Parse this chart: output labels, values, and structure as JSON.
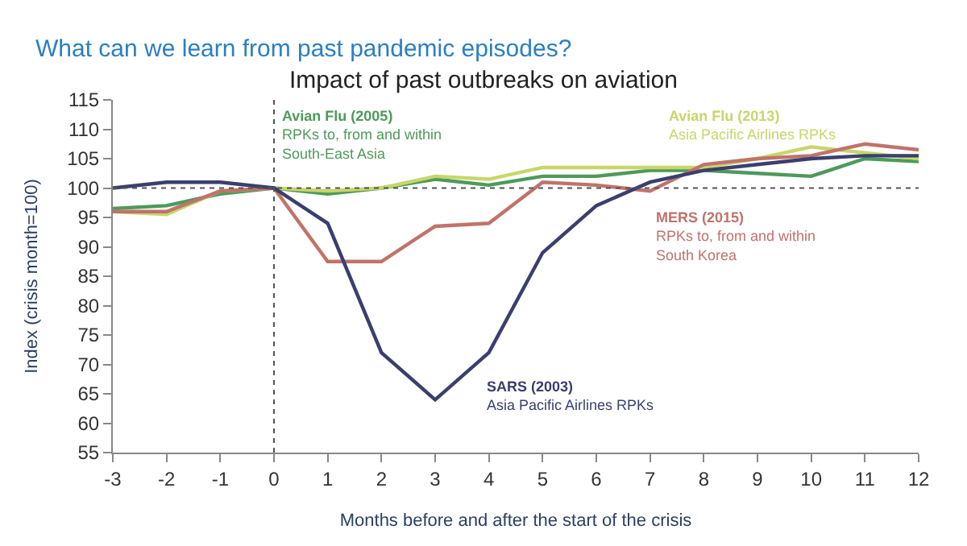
{
  "chart_data": {
    "type": "line",
    "title": "What can we learn from past pandemic episodes?",
    "subtitle": "Impact of past outbreaks on aviation",
    "xlabel": "Months before and after the start of the crisis",
    "ylabel": "Index (crisis month=100)",
    "x": [
      -3,
      -2,
      -1,
      0,
      1,
      2,
      3,
      4,
      5,
      6,
      7,
      8,
      9,
      10,
      11,
      12
    ],
    "series": [
      {
        "color": "#4e9a5b",
        "values": [
          96.5,
          97,
          99,
          100,
          99,
          100,
          101.5,
          100.5,
          102,
          102,
          103,
          103,
          102.5,
          102,
          105,
          104.5
        ]
      },
      {
        "color": "#c8d66a",
        "values": [
          96,
          95.5,
          99.5,
          100,
          99.5,
          100,
          102,
          101.5,
          103.5,
          103.5,
          103.5,
          103.5,
          105,
          107,
          106,
          105
        ]
      },
      {
        "color": "#c0736a",
        "values": [
          96,
          96,
          99.5,
          100,
          87.5,
          87.5,
          93.5,
          94,
          101,
          100.5,
          99.5,
          104,
          105,
          105.5,
          107.5,
          106.5
        ]
      },
      {
        "color": "#3a3f6e",
        "values": [
          100,
          101,
          101,
          100,
          94,
          72,
          64,
          72,
          89,
          97,
          101,
          103,
          104,
          105,
          105.5,
          105.5
        ]
      }
    ],
    "annotations": [
      "Avian Flu (2005)\nRPKs to, from and within\nSouth-East Asia",
      "Avian Flu (2013)\nAsia Pacific Airlines RPKs",
      "MERS (2015)\nRPKs to, from and within\nSouth Korea",
      "SARS (2003)\nAsia Pacific Airlines RPKs"
    ],
    "ref_lines": [
      {
        "axis": "y",
        "value": 100,
        "color": "#555555",
        "line_style": "dotted"
      },
      {
        "axis": "x",
        "value": 0,
        "color": "#555555",
        "line_style": "dotted"
      }
    ],
    "xlim": [
      -3,
      12
    ],
    "xticks": [
      -3,
      -2,
      -1,
      0,
      1,
      2,
      3,
      4,
      5,
      6,
      7,
      8,
      9,
      10,
      11,
      12
    ],
    "ylim": [
      55,
      115
    ],
    "yticks": [
      55,
      60,
      65,
      70,
      75,
      80,
      85,
      90,
      95,
      100,
      105,
      110,
      115
    ],
    "marker": "none",
    "line_style": "solid"
  }
}
